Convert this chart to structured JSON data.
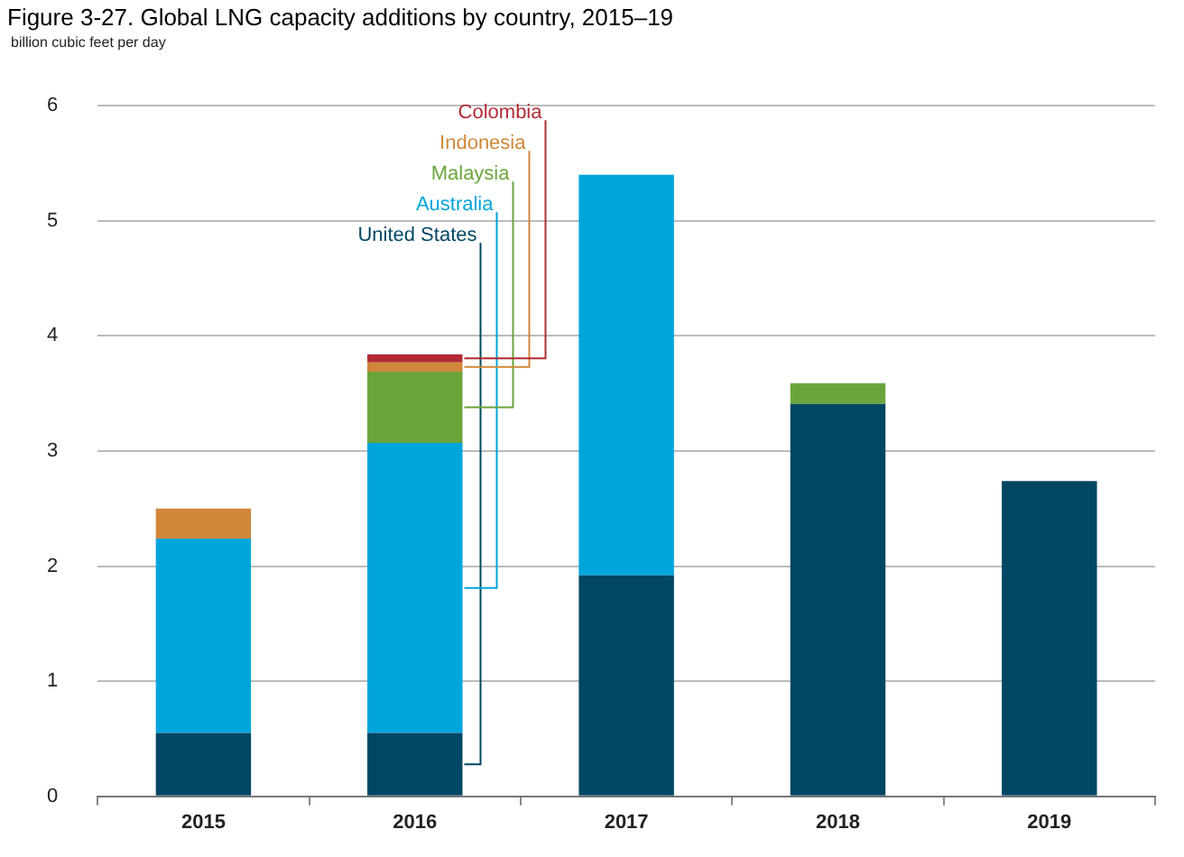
{
  "chart_data": {
    "type": "bar",
    "title": "Figure 3-27. Global LNG capacity additions by country, 2015–19",
    "ylabel": "billion cubic feet per day",
    "categories": [
      "2015",
      "2016",
      "2017",
      "2018",
      "2019"
    ],
    "stacked": true,
    "series": [
      {
        "name": "United States",
        "color": "#004763",
        "values": [
          0.55,
          0.55,
          1.92,
          3.41,
          2.74
        ]
      },
      {
        "name": "Australia",
        "color": "#00a5dc",
        "values": [
          1.69,
          2.52,
          3.48,
          null,
          null
        ]
      },
      {
        "name": "Malaysia",
        "color": "#6aa53c",
        "values": [
          null,
          0.62,
          null,
          0.18,
          null
        ]
      },
      {
        "name": "Indonesia",
        "color": "#d0873a",
        "values": [
          0.26,
          0.08,
          null,
          null,
          null
        ]
      },
      {
        "name": "Colombia",
        "color": "#b22a34",
        "values": [
          null,
          0.07,
          null,
          null,
          null
        ]
      }
    ],
    "ylim": [
      0,
      6
    ],
    "yticks": [
      0,
      1,
      2,
      3,
      4,
      5,
      6
    ],
    "grid": "y",
    "legend": false
  }
}
